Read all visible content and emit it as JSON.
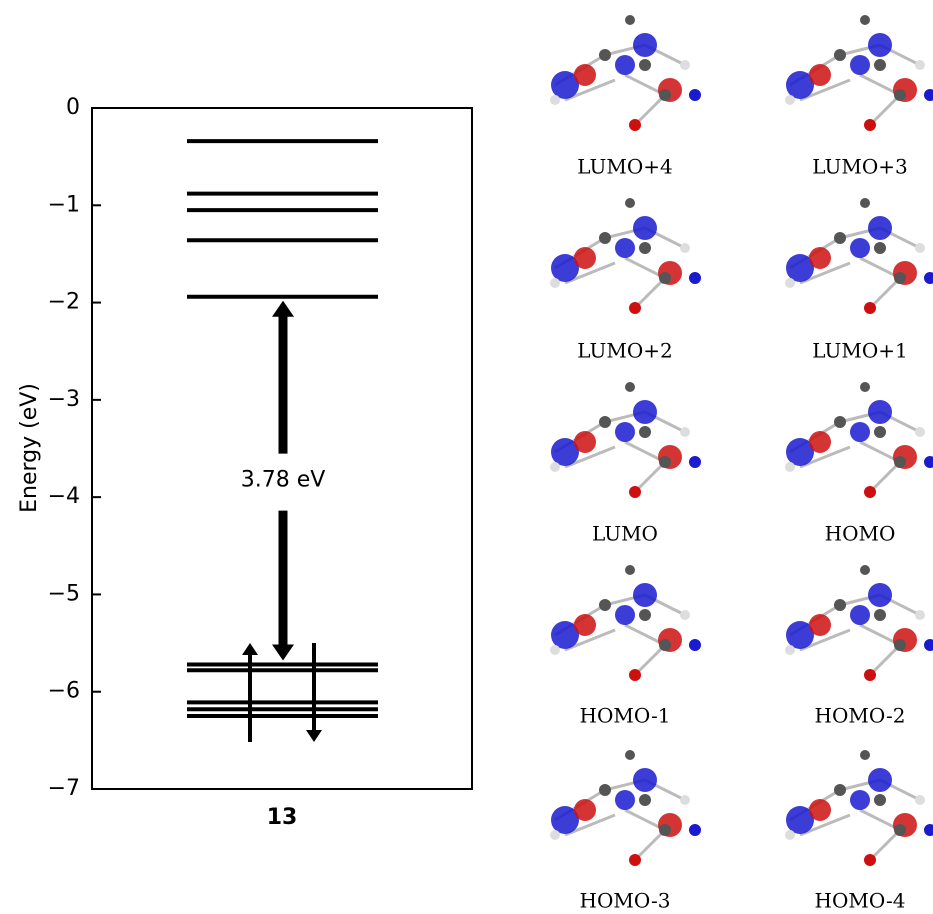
{
  "chart_data": {
    "type": "levels",
    "ylabel": "Energy (eV)",
    "category": "13",
    "ylim": [
      -7,
      0
    ],
    "yticks": [
      {
        "value": -7,
        "label": "−7"
      },
      {
        "value": -6,
        "label": "−6"
      },
      {
        "value": -5,
        "label": "−5"
      },
      {
        "value": -4,
        "label": "−4"
      },
      {
        "value": -3,
        "label": "−3"
      },
      {
        "value": -2,
        "label": "−2"
      },
      {
        "value": -1,
        "label": "−1"
      },
      0
    ],
    "orbitals": [
      "LUMO+4",
      "LUMO+3",
      "LUMO+2",
      "LUMO+1",
      "LUMO",
      "HOMO",
      "HOMO-1",
      "HOMO-2",
      "HOMO-3",
      "HOMO-4"
    ],
    "values": [
      -0.34,
      -0.88,
      -1.05,
      -1.36,
      -1.94,
      -5.72,
      -5.78,
      -6.11,
      -6.18,
      -6.25
    ],
    "color": "#000000",
    "gap": {
      "value": 3.78,
      "label": "3.78 eV"
    }
  }
}
